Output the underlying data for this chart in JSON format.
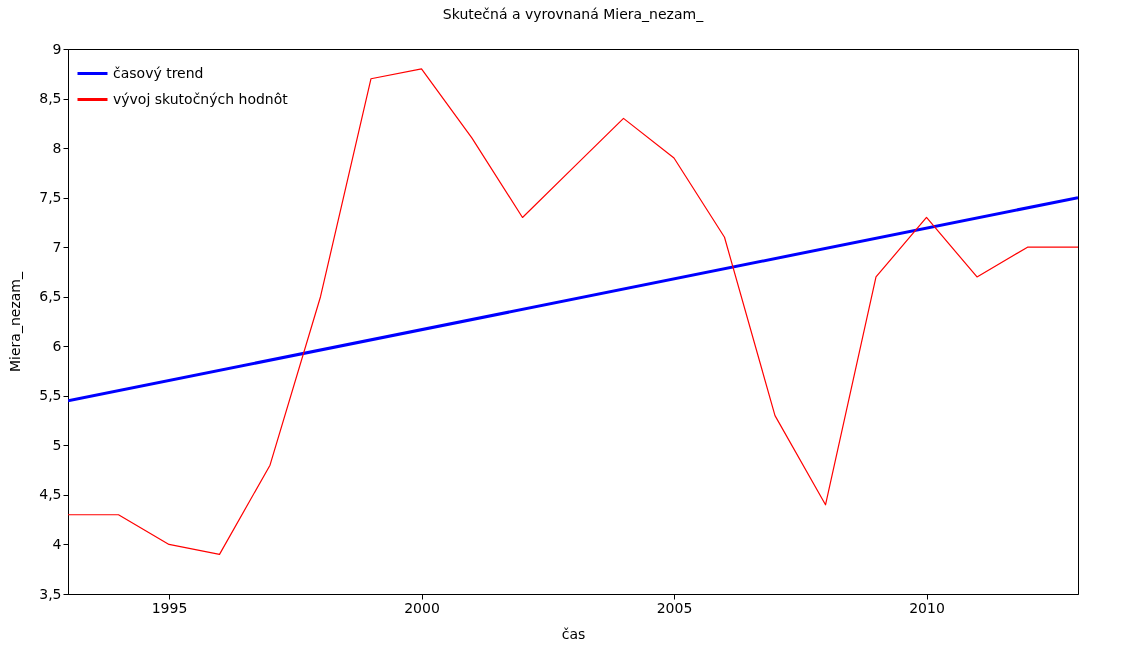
{
  "chart_data": {
    "type": "line",
    "title": "Skutečná a vyrovnaná Miera_nezam_",
    "xlabel": "čas",
    "ylabel": "Miera_nezam_",
    "x": [
      1993,
      1994,
      1995,
      1996,
      1997,
      1998,
      1999,
      2000,
      2001,
      2002,
      2003,
      2004,
      2005,
      2006,
      2007,
      2008,
      2009,
      2010,
      2011,
      2012,
      2013
    ],
    "series": [
      {
        "name": "časový trend",
        "color": "#0000ff",
        "type": "line",
        "x": [
          1993,
          2013
        ],
        "values": [
          5.45,
          7.5
        ]
      },
      {
        "name": "vývoj skutočných hodnôt",
        "color": "#ff0000",
        "values": [
          4.3,
          4.3,
          4.0,
          3.9,
          4.8,
          6.5,
          8.7,
          8.8,
          8.1,
          7.3,
          7.8,
          8.3,
          7.9,
          7.1,
          5.3,
          4.4,
          6.7,
          7.3,
          6.7,
          7.0,
          7.0
        ]
      }
    ],
    "xlim": [
      1993,
      2013
    ],
    "xticks": [
      1995,
      2000,
      2005,
      2010
    ],
    "ylim": [
      3.5,
      9
    ],
    "yticks": [
      {
        "value": 3.5,
        "label": "3,5"
      },
      4,
      {
        "value": 4.5,
        "label": "4,5"
      },
      5,
      {
        "value": 5.5,
        "label": "5,5"
      },
      6,
      {
        "value": 6.5,
        "label": "6,5"
      },
      7,
      {
        "value": 7.5,
        "label": "7,5"
      },
      8,
      {
        "value": 8.5,
        "label": "8,5"
      },
      9
    ],
    "legend": "top left",
    "grid": false,
    "marker": "none",
    "line_style": "solid"
  }
}
